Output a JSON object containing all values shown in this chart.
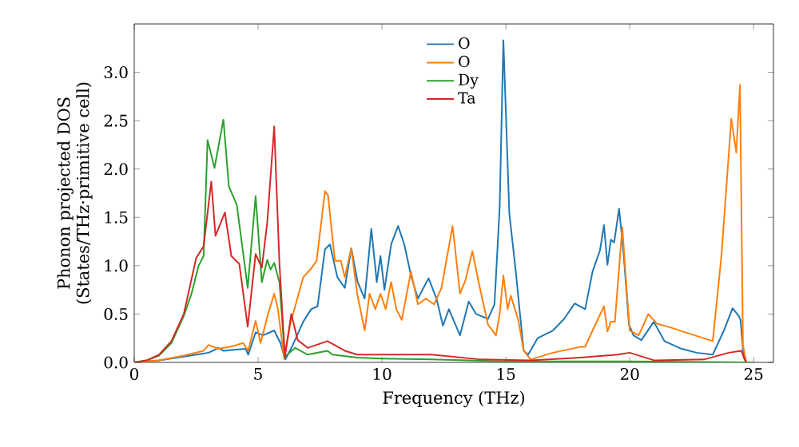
{
  "chart_data": {
    "type": "line",
    "xlabel": "Frequency (THz)",
    "ylabel": "Phonon projected DOS\n(States/THz·primitive cell)",
    "xlim": [
      0,
      25.8
    ],
    "ylim": [
      0,
      3.5
    ],
    "xticks": [
      0,
      5,
      10,
      15,
      20,
      25
    ],
    "yticks": [
      {
        "value": 0,
        "label": "0.0"
      },
      0.5,
      {
        "value": 1,
        "label": "1.0"
      },
      1.5,
      {
        "value": 2,
        "label": "2.0"
      },
      2.5,
      {
        "value": 3,
        "label": "3.0"
      }
    ],
    "legend": "top center",
    "grid": false,
    "marker": "none",
    "line_style": "solid",
    "series": [
      {
        "name": "O",
        "color": "#1f77b4",
        "x": [
          0,
          1,
          2,
          3,
          3.4,
          3.6,
          4,
          4.5,
          4.6,
          4.9,
          5.2,
          5.65,
          5.9,
          6.1,
          6.4,
          6.82,
          7.14,
          7.4,
          7.7,
          7.9,
          8.2,
          8.5,
          8.76,
          9.02,
          9.3,
          9.57,
          9.79,
          9.94,
          10.1,
          10.37,
          10.65,
          10.9,
          11.17,
          11.45,
          11.88,
          12.2,
          12.46,
          12.7,
          13.15,
          13.5,
          13.8,
          14.28,
          14.54,
          14.75,
          14.9,
          15.14,
          15.4,
          15.57,
          15.72,
          15.9,
          16.28,
          16.9,
          17.35,
          17.78,
          18.2,
          18.5,
          18.8,
          18.96,
          19.1,
          19.24,
          19.37,
          19.57,
          19.76,
          19.97,
          20.15,
          20.47,
          20.97,
          21.4,
          22.1,
          22.7,
          23.35,
          23.8,
          24.15,
          24.4,
          24.47,
          24.6,
          24.7
        ],
        "values": [
          0,
          0.02,
          0.06,
          0.1,
          0.15,
          0.12,
          0.13,
          0.14,
          0.08,
          0.31,
          0.28,
          0.33,
          0.2,
          0.03,
          0.18,
          0.42,
          0.55,
          0.58,
          1.17,
          1.22,
          0.88,
          0.77,
          1.18,
          0.83,
          0.66,
          1.38,
          0.83,
          1.1,
          0.75,
          1.22,
          1.41,
          1.22,
          0.9,
          0.66,
          0.87,
          0.66,
          0.38,
          0.55,
          0.28,
          0.63,
          0.5,
          0.45,
          0.6,
          1.6,
          3.33,
          1.54,
          0.94,
          0.5,
          0.12,
          0.08,
          0.25,
          0.33,
          0.45,
          0.61,
          0.55,
          0.94,
          1.16,
          1.42,
          1.01,
          1.27,
          1.24,
          1.59,
          1.1,
          0.39,
          0.28,
          0.23,
          0.42,
          0.22,
          0.14,
          0.1,
          0.08,
          0.33,
          0.56,
          0.48,
          0.44,
          0.05,
          0
        ]
      },
      {
        "name": "O",
        "color": "#ff7f0e",
        "x": [
          0,
          1,
          2,
          2.8,
          3,
          3.4,
          4,
          4.4,
          4.6,
          4.9,
          5.1,
          5.4,
          5.65,
          5.8,
          6.05,
          6.3,
          6.82,
          7.14,
          7.36,
          7.7,
          7.82,
          8.1,
          8.34,
          8.5,
          8.76,
          9.0,
          9.3,
          9.5,
          9.73,
          9.94,
          10.15,
          10.37,
          10.58,
          10.8,
          11.17,
          11.45,
          11.77,
          12.1,
          12.4,
          12.85,
          13.15,
          13.37,
          13.65,
          13.9,
          14.28,
          14.6,
          14.75,
          14.9,
          15.07,
          15.2,
          15.5,
          15.72,
          16.0,
          16.9,
          18.0,
          18.2,
          18.5,
          18.96,
          19.1,
          19.24,
          19.4,
          19.7,
          19.87,
          20.0,
          20.36,
          20.75,
          21.1,
          21.66,
          22.5,
          23.35,
          23.7,
          24.1,
          24.3,
          24.45,
          24.57,
          24.7
        ],
        "values": [
          0,
          0.02,
          0.07,
          0.12,
          0.18,
          0.14,
          0.17,
          0.2,
          0.12,
          0.43,
          0.2,
          0.5,
          0.71,
          0.55,
          0.04,
          0.4,
          0.88,
          0.97,
          1.05,
          1.77,
          1.73,
          1.05,
          1.05,
          0.88,
          1.18,
          0.71,
          0.33,
          0.71,
          0.55,
          0.71,
          0.55,
          0.83,
          0.55,
          0.44,
          0.94,
          0.6,
          0.66,
          0.6,
          0.77,
          1.41,
          0.71,
          0.85,
          1.15,
          0.83,
          0.39,
          0.28,
          0.5,
          0.9,
          0.55,
          0.69,
          0.44,
          0.12,
          0.03,
          0.1,
          0.16,
          0.16,
          0.33,
          0.58,
          0.32,
          0.42,
          0.42,
          1.4,
          0.77,
          0.33,
          0.28,
          0.5,
          0.4,
          0.36,
          0.29,
          0.22,
          1.1,
          2.52,
          2.17,
          2.87,
          0.18,
          0
        ]
      },
      {
        "name": "Dy",
        "color": "#2ca02c",
        "x": [
          0,
          0.5,
          1,
          1.5,
          2,
          2.3,
          2.6,
          2.8,
          2.96,
          3.24,
          3.6,
          3.82,
          4.14,
          4.58,
          4.9,
          5.15,
          5.37,
          5.5,
          5.65,
          5.86,
          6.08,
          6.5,
          7,
          7.8,
          8,
          9,
          10,
          12,
          15,
          20,
          25
        ],
        "values": [
          0,
          0.02,
          0.07,
          0.2,
          0.48,
          0.7,
          1.0,
          1.1,
          2.3,
          2.01,
          2.51,
          1.82,
          1.63,
          0.77,
          1.72,
          0.83,
          1.06,
          0.96,
          1.03,
          0.83,
          0.06,
          0.15,
          0.08,
          0.12,
          0.08,
          0.05,
          0.04,
          0.03,
          0.01,
          0.01,
          0
        ]
      },
      {
        "name": "Ta",
        "color": "#d62728",
        "x": [
          0,
          0.5,
          1,
          1.5,
          2,
          2.5,
          2.8,
          3.11,
          3.28,
          3.66,
          3.92,
          4.24,
          4.58,
          4.9,
          5.15,
          5.37,
          5.65,
          5.86,
          6.08,
          6.34,
          6.6,
          7,
          7.8,
          8.5,
          9,
          10,
          12,
          14,
          16,
          18,
          19.5,
          20,
          21,
          23,
          24,
          24.5,
          24.7
        ],
        "values": [
          0,
          0.02,
          0.08,
          0.22,
          0.5,
          1.08,
          1.2,
          1.87,
          1.31,
          1.55,
          1.1,
          1.02,
          0.37,
          1.12,
          0.98,
          1.45,
          2.44,
          1.03,
          0.06,
          0.5,
          0.23,
          0.15,
          0.22,
          0.12,
          0.08,
          0.08,
          0.08,
          0.03,
          0.02,
          0.05,
          0.08,
          0.1,
          0.02,
          0.03,
          0.1,
          0.12,
          0
        ]
      }
    ]
  }
}
